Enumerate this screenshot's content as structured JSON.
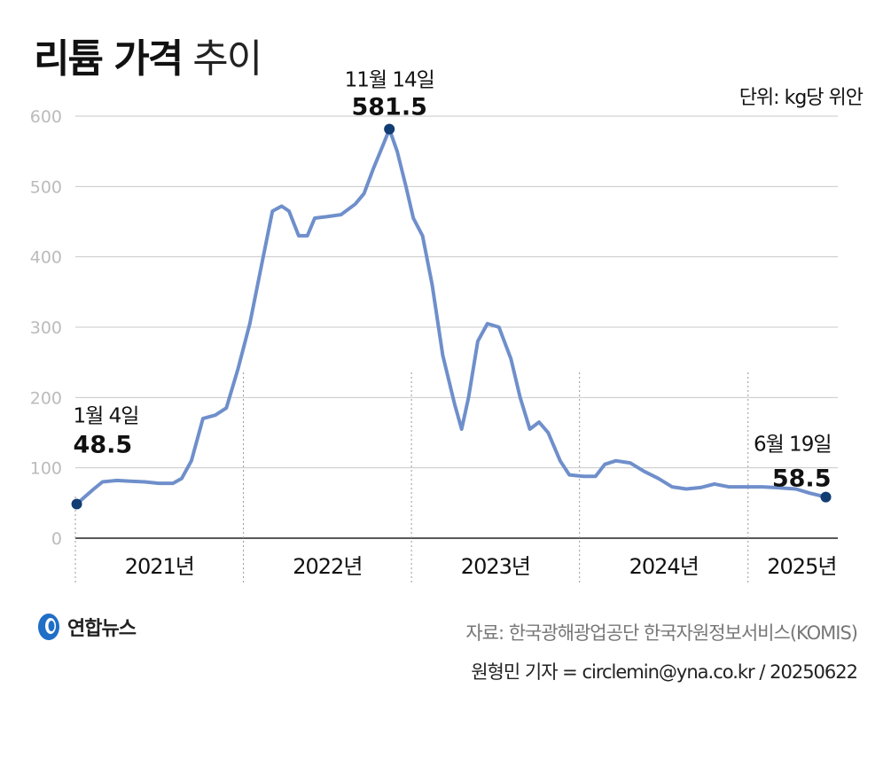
{
  "title": {
    "bold": "리튬 가격",
    "light": "추이"
  },
  "unit_label": "단위: kg당 위안",
  "logo_text": "연합뉴스",
  "source": "자료: 한국광해광업공단 한국자원정보서비스(KOMIS)",
  "credit": "원형민 기자 = circlemin@yna.co.kr / 20250622",
  "colors": {
    "line": "#6f8fcb",
    "point": "#123d73",
    "grid": "#c8c8c8",
    "axis": "#222222",
    "tick": "#bbbbbb"
  },
  "chart_data": {
    "type": "line",
    "title": "리튬 가격 추이",
    "ylabel": "단위: kg당 위안",
    "ylim": [
      0,
      600
    ],
    "yticks": [
      0,
      100,
      200,
      300,
      400,
      500,
      600
    ],
    "xlim": [
      "2021-01-01",
      "2025-07-15"
    ],
    "grid": true,
    "x_categories": [
      {
        "label": "2021년",
        "start": "2021-01-01",
        "end": "2022-01-01"
      },
      {
        "label": "2022년",
        "start": "2022-01-01",
        "end": "2023-01-01"
      },
      {
        "label": "2023년",
        "start": "2023-01-01",
        "end": "2024-01-01"
      },
      {
        "label": "2024년",
        "start": "2024-01-01",
        "end": "2025-01-01"
      },
      {
        "label": "2025년",
        "start": "2025-01-01",
        "end": "2025-07-15"
      }
    ],
    "series": [
      {
        "points": [
          [
            "2021-01-04",
            48.5
          ],
          [
            "2021-01-20",
            58
          ],
          [
            "2021-02-10",
            70
          ],
          [
            "2021-03-01",
            80
          ],
          [
            "2021-04-01",
            82
          ],
          [
            "2021-05-01",
            81
          ],
          [
            "2021-06-01",
            80
          ],
          [
            "2021-07-01",
            78
          ],
          [
            "2021-08-01",
            78
          ],
          [
            "2021-08-20",
            85
          ],
          [
            "2021-09-10",
            110
          ],
          [
            "2021-10-05",
            170
          ],
          [
            "2021-11-01",
            175
          ],
          [
            "2021-11-25",
            185
          ],
          [
            "2021-12-20",
            240
          ],
          [
            "2022-01-15",
            305
          ],
          [
            "2022-02-10",
            390
          ],
          [
            "2022-03-05",
            465
          ],
          [
            "2022-03-25",
            472
          ],
          [
            "2022-04-10",
            465
          ],
          [
            "2022-05-01",
            430
          ],
          [
            "2022-05-20",
            430
          ],
          [
            "2022-06-05",
            455
          ],
          [
            "2022-07-01",
            457
          ],
          [
            "2022-08-01",
            460
          ],
          [
            "2022-09-01",
            475
          ],
          [
            "2022-09-20",
            490
          ],
          [
            "2022-10-10",
            525
          ],
          [
            "2022-11-01",
            560
          ],
          [
            "2022-11-14",
            581.5
          ],
          [
            "2022-12-01",
            550
          ],
          [
            "2022-12-20",
            500
          ],
          [
            "2023-01-05",
            455
          ],
          [
            "2023-01-25",
            430
          ],
          [
            "2023-02-15",
            360
          ],
          [
            "2023-03-10",
            260
          ],
          [
            "2023-04-05",
            190
          ],
          [
            "2023-04-20",
            155
          ],
          [
            "2023-05-05",
            200
          ],
          [
            "2023-05-25",
            280
          ],
          [
            "2023-06-15",
            305
          ],
          [
            "2023-07-10",
            300
          ],
          [
            "2023-08-05",
            255
          ],
          [
            "2023-08-25",
            200
          ],
          [
            "2023-09-15",
            155
          ],
          [
            "2023-10-05",
            165
          ],
          [
            "2023-10-25",
            150
          ],
          [
            "2023-11-20",
            110
          ],
          [
            "2023-12-10",
            90
          ],
          [
            "2024-01-10",
            88
          ],
          [
            "2024-02-05",
            88
          ],
          [
            "2024-02-25",
            105
          ],
          [
            "2024-03-20",
            110
          ],
          [
            "2024-04-20",
            107
          ],
          [
            "2024-05-20",
            95
          ],
          [
            "2024-06-20",
            85
          ],
          [
            "2024-07-20",
            73
          ],
          [
            "2024-08-20",
            70
          ],
          [
            "2024-09-20",
            72
          ],
          [
            "2024-10-20",
            77
          ],
          [
            "2024-11-20",
            73
          ],
          [
            "2025-01-01",
            73
          ],
          [
            "2025-02-01",
            73
          ],
          [
            "2025-03-01",
            72
          ],
          [
            "2025-04-15",
            70
          ],
          [
            "2025-05-15",
            64
          ],
          [
            "2025-06-19",
            58.5
          ]
        ]
      }
    ],
    "annotations": [
      {
        "x": "2021-01-04",
        "y": 48.5,
        "date_label": "1월 4일",
        "value_label": "48.5"
      },
      {
        "x": "2022-11-14",
        "y": 581.5,
        "date_label": "11월 14일",
        "value_label": "581.5"
      },
      {
        "x": "2025-06-19",
        "y": 58.5,
        "date_label": "6월 19일",
        "value_label": "58.5"
      }
    ]
  }
}
